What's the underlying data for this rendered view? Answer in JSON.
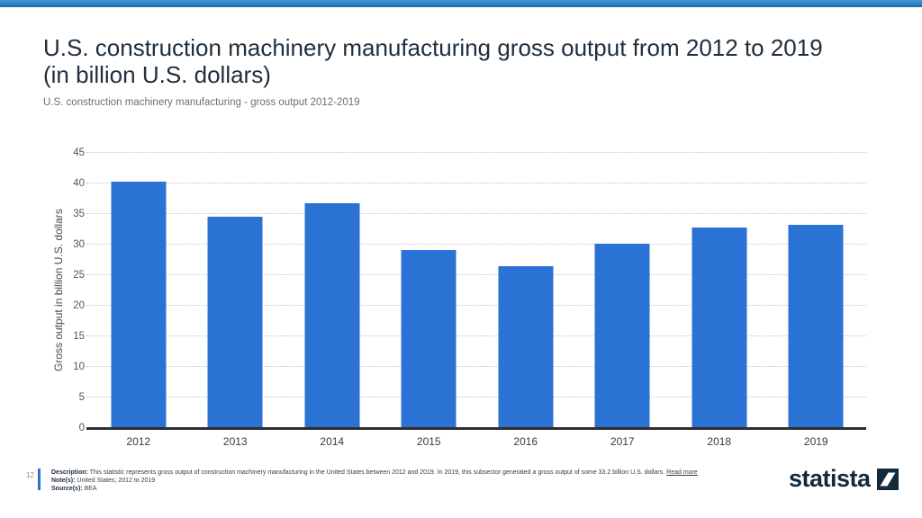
{
  "page": {
    "title": "U.S. construction machinery manufacturing gross output from 2012 to 2019 (in billion U.S. dollars)",
    "subtitle": "U.S. construction machinery manufacturing - gross output 2012-2019",
    "page_number": "12",
    "footer": {
      "description_label": "Description:",
      "description": "This statistic represents gross output of construction machinery manufacturing in the United States between 2012 and 2019. In 2019, this subsector generated a gross output of some 33.2 billion U.S. dollars.",
      "read_more": "Read more",
      "note_label": "Note(s):",
      "note": "United States; 2012 to 2019",
      "source_label": "Source(s):",
      "source": "BEA"
    },
    "brand": "statista",
    "colors": {
      "bar": "#2b72d5",
      "accent_strip": "#2d83c4",
      "title": "#1e2e3c",
      "brand_navy": "#13293c"
    }
  },
  "chart_data": {
    "type": "bar",
    "categories": [
      "2012",
      "2013",
      "2014",
      "2015",
      "2016",
      "2017",
      "2018",
      "2019"
    ],
    "values": [
      40.3,
      34.5,
      36.8,
      29.1,
      26.5,
      30.1,
      32.8,
      33.2
    ],
    "title": "U.S. construction machinery manufacturing gross output from 2012 to 2019 (in billion U.S. dollars)",
    "xlabel": "",
    "ylabel": "Gross output in billion U.S. dollars",
    "ylim": [
      0,
      45
    ],
    "ytick_step": 5,
    "grid": "horizontal-dotted",
    "legend": "none",
    "bar_color": "#2b72d5"
  }
}
